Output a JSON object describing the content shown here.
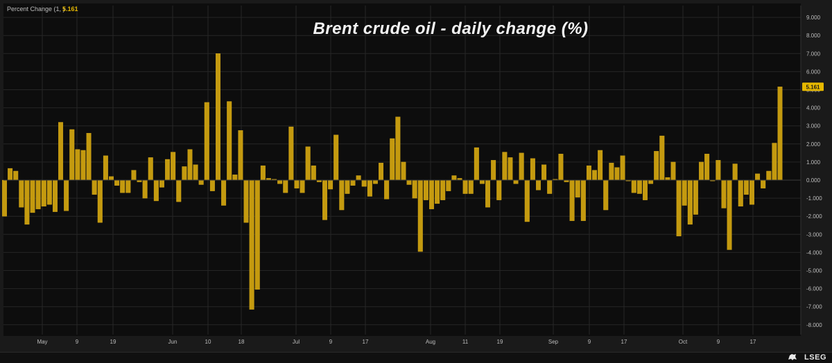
{
  "header": {
    "label": "Percent Change (1, )",
    "value": "5.161"
  },
  "branding": {
    "logo_text": "LSEG",
    "logo_icon": "lseg-lion-icon"
  },
  "colors": {
    "bar": "#c49a0f",
    "bar_edge": "#e0b320",
    "background": "#0d0d0d",
    "grid": "#262626",
    "text": "#bdbdbd",
    "value_badge": "#e6b800"
  },
  "chart_data": {
    "type": "bar",
    "title": "Brent crude oil - daily change (%)",
    "xlabel": "",
    "ylabel": "",
    "ylim": [
      -8.5,
      9.5
    ],
    "y_ticks": [
      "9.000",
      "8.000",
      "7.000",
      "6.000",
      "5.000",
      "4.000",
      "3.000",
      "2.000",
      "1.000",
      "0.000",
      "-1.000",
      "-2.000",
      "-3.000",
      "-4.000",
      "-5.000",
      "-6.000",
      "-7.000",
      "-8.000"
    ],
    "x_tick_labels": [
      "May",
      "9",
      "19",
      "Jun",
      "10",
      "18",
      "Jul",
      "9",
      "17",
      "Aug",
      "11",
      "19",
      "Sep",
      "9",
      "17",
      "Oct",
      "9",
      "17"
    ],
    "last_value_label": "5.161",
    "grid": true,
    "series": [
      {
        "values": [
          -2.0,
          0.65,
          0.5,
          -1.5,
          -2.45,
          -1.8,
          -1.6,
          -1.45,
          -1.35,
          -1.75,
          3.2,
          -1.7,
          2.8,
          1.7,
          1.65,
          2.6,
          -0.8,
          -2.35,
          1.35,
          0.2,
          -0.3,
          -0.7,
          -0.7,
          0.55,
          -0.1,
          -1.0,
          1.25,
          -1.15,
          -0.4,
          1.15,
          1.55,
          -1.2,
          0.75,
          1.7,
          0.85,
          -0.25,
          4.3,
          -0.6,
          7.0,
          -1.4,
          4.35,
          0.3,
          2.75,
          -2.35,
          -7.15,
          -6.05,
          0.8,
          0.1,
          0.05,
          -0.2,
          -0.7,
          2.95,
          -0.45,
          -0.7,
          1.85,
          0.8,
          -0.1,
          -2.2,
          -0.5,
          2.5,
          -1.65,
          -0.75,
          -0.3,
          0.25,
          -0.35,
          -0.9,
          -0.2,
          0.95,
          -1.05,
          2.3,
          3.5,
          1.0,
          -0.25,
          -1.0,
          -3.95,
          -1.1,
          -1.6,
          -1.3,
          -1.1,
          -0.6,
          0.25,
          0.1,
          -0.75,
          -0.75,
          1.8,
          -0.2,
          -1.5,
          1.1,
          -1.1,
          1.55,
          1.25,
          -0.2,
          1.5,
          -2.3,
          1.2,
          -0.55,
          0.85,
          -0.75,
          0.05,
          1.45,
          -0.1,
          -2.25,
          -0.95,
          -2.25,
          0.8,
          0.55,
          1.65,
          -1.65,
          0.95,
          0.7,
          1.35,
          -0.05,
          -0.7,
          -0.75,
          -1.1,
          -0.2,
          1.6,
          2.45,
          0.15,
          1.0,
          -3.1,
          -1.4,
          -2.45,
          -1.9,
          1.0,
          1.45,
          -0.05,
          1.1,
          -1.55,
          -3.85,
          0.9,
          -1.45,
          -0.8,
          -1.35,
          0.35,
          -0.45,
          0.5,
          2.05,
          5.161
        ]
      }
    ]
  }
}
